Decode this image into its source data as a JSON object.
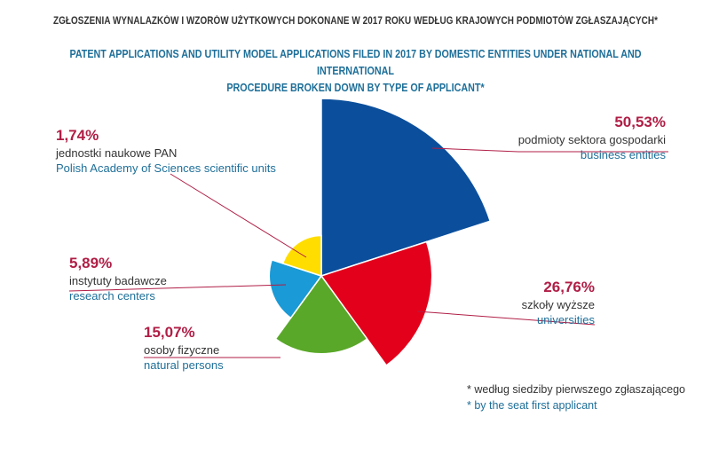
{
  "title_pl": "ZGŁOSZENIA WYNALAZKÓW I WZORÓW UŻYTKOWYCH DOKONANE W 2017 ROKU WEDŁUG KRAJOWYCH PODMIOTÓW ZGŁASZAJĄCYCH*",
  "title_en_line1": "PATENT APPLICATIONS AND UTILITY MODEL APPLICATIONS FILED IN 2017 BY DOMESTIC ENTITIES UNDER NATIONAL AND INTERNATIONAL",
  "title_en_line2": "PROCEDURE BROKEN DOWN BY TYPE OF APPLICANT*",
  "chart_data": {
    "type": "pie",
    "variant": "polar-area (radius proportional to share)",
    "series": [
      {
        "pct_label": "50,53%",
        "value": 50.53,
        "name_pl": "podmioty sektora gospodarki",
        "name_en": "business entities",
        "color": "#0b4f9c"
      },
      {
        "pct_label": "26,76%",
        "value": 26.76,
        "name_pl": "szkoły wyższe",
        "name_en": "universities",
        "color": "#e3001b"
      },
      {
        "pct_label": "15,07%",
        "value": 15.07,
        "name_pl": "osoby fizyczne",
        "name_en": "natural persons",
        "color": "#5aa829"
      },
      {
        "pct_label": "5,89%",
        "value": 5.89,
        "name_pl": "instytuty badawcze",
        "name_en": "research centers",
        "color": "#1a9ad6"
      },
      {
        "pct_label": "1,74%",
        "value": 1.74,
        "name_pl": "jednostki naukowe PAN",
        "name_en": "Polish Academy of Sciences scientific units",
        "color": "#ffdd00"
      }
    ]
  },
  "footnote_pl": "* według siedziby pierwszego zgłaszającego",
  "footnote_en": "* by the seat first applicant",
  "colors": {
    "accent_pct": "#b01e46",
    "text_en": "#1e6f99",
    "text_pl": "#333333",
    "leader_line": "#b01e46"
  }
}
